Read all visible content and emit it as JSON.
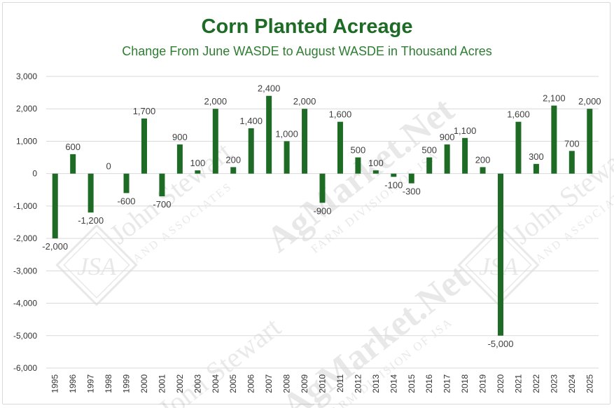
{
  "chart_data": {
    "type": "bar",
    "title": "Corn Planted Acreage",
    "subtitle": "Change From June WASDE to August WASDE in Thousand Acres",
    "categories": [
      "1995",
      "1996",
      "1997",
      "1998",
      "1999",
      "2000",
      "2001",
      "2002",
      "2003",
      "2004",
      "2005",
      "2006",
      "2007",
      "2008",
      "2009",
      "2010",
      "2011",
      "2012",
      "2013",
      "2014",
      "2015",
      "2016",
      "2017",
      "2018",
      "2019",
      "2020",
      "2021",
      "2022",
      "2023",
      "2024",
      "2025"
    ],
    "values": [
      -2000,
      600,
      -1200,
      0,
      -600,
      1700,
      -700,
      900,
      100,
      2000,
      200,
      1400,
      2400,
      1000,
      2000,
      -900,
      1600,
      500,
      100,
      -100,
      -300,
      500,
      900,
      1100,
      200,
      -5000,
      1600,
      300,
      2100,
      700,
      2000
    ],
    "data_labels": [
      "-2,000",
      "600",
      "-1,200",
      "0",
      "-600",
      "1,700",
      "-700",
      "900",
      "100",
      "2,000",
      "200",
      "1,400",
      "2,400",
      "1,000",
      "2,000",
      "-900",
      "1,600",
      "500",
      "100",
      "-100",
      "-300",
      "500",
      "900",
      "1,100",
      "200",
      "-5,000",
      "1,600",
      "300",
      "2,100",
      "700",
      "2,000"
    ],
    "y_ticks": [
      "3,000",
      "2,000",
      "1,000",
      "0",
      "-1,000",
      "-2,000",
      "-3,000",
      "-4,000",
      "-5,000",
      "-6,000"
    ],
    "ylim": [
      -6000,
      3000
    ],
    "grid": true,
    "bar_color": "#1e6b26"
  },
  "watermarks": {
    "left": [
      "John Stewart",
      "AND ASSOCIATES"
    ],
    "center": [
      "AgMarket.Net",
      "FARM DIVISION OF JSA"
    ],
    "right": [
      "John Stewart",
      "AND ASSOCIATES"
    ],
    "monogram": "JSA"
  }
}
